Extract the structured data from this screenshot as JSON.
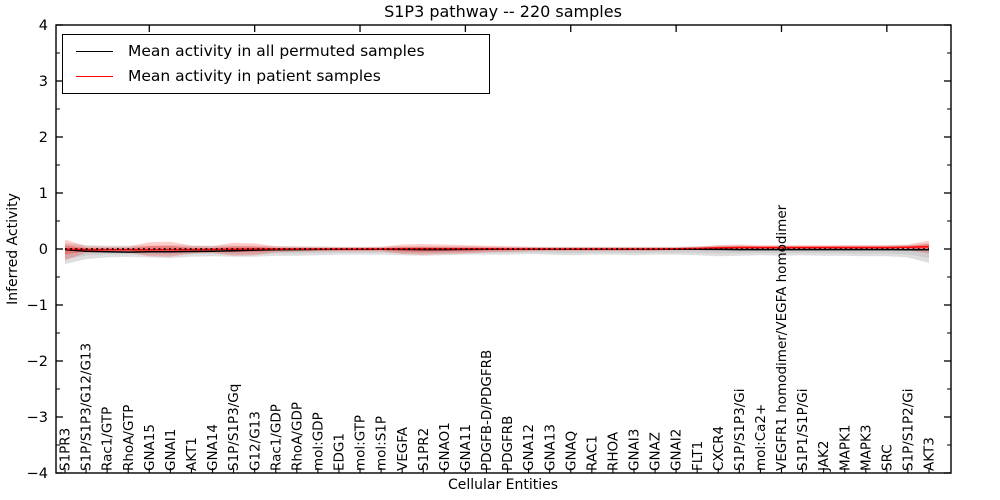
{
  "figure": {
    "title": "S1P3 pathway -- 220 samples",
    "xlabel": "Cellular Entities",
    "ylabel": "Inferred Activity"
  },
  "legend": {
    "position": "upper left",
    "items": [
      {
        "label": "Mean activity in all permuted samples",
        "color": "#000000"
      },
      {
        "label": "Mean activity in patient samples",
        "color": "#ff0000"
      }
    ]
  },
  "chart_data": {
    "type": "line",
    "title": "S1P3 pathway -- 220 samples",
    "xlabel": "Cellular Entities",
    "ylabel": "Inferred Activity",
    "ylim": [
      -4,
      4
    ],
    "yticks": [
      4,
      3,
      2,
      1,
      0,
      -1,
      -2,
      -3,
      -4
    ],
    "y_minor_tick_step": 0.5,
    "xticks_top": [
      5,
      10,
      15,
      20,
      25,
      30,
      35,
      40
    ],
    "grid": false,
    "legend_position": "upper left",
    "categories": [
      "S1PR3",
      "S1P/S1P3/G12/G13",
      "Rac1/GTP",
      "RhoA/GTP",
      "GNA15",
      "GNAI1",
      "AKT1",
      "GNA14",
      "S1P/S1P3/Gq",
      "G12/G13",
      "Rac1/GDP",
      "RhoA/GDP",
      "mol:GDP",
      "EDG1",
      "mol:GTP",
      "mol:S1P",
      "VEGFA",
      "S1PR2",
      "GNAO1",
      "GNA11",
      "PDGFB-D/PDGFRB",
      "PDGFRB",
      "GNA12",
      "GNA13",
      "GNAQ",
      "RAC1",
      "RHOA",
      "GNAI3",
      "GNAZ",
      "GNAI2",
      "FLT1",
      "CXCR4",
      "S1P/S1P3/Gi",
      "mol:Ca2+",
      "VEGFR1 homodimer/VEGFA homodimer",
      "S1P1/S1P/Gi",
      "JAK2",
      "MAPK1",
      "MAPK3",
      "SRC",
      "S1P/S1P2/Gi",
      "AKT3"
    ],
    "series": [
      {
        "name": "Mean activity in all permuted samples",
        "color": "#000000",
        "style": "solid",
        "values": [
          -0.01,
          -0.04,
          -0.05,
          -0.055,
          -0.05,
          -0.05,
          -0.045,
          -0.04,
          -0.03,
          -0.02,
          -0.015,
          -0.01,
          -0.008,
          -0.005,
          -0.005,
          -0.005,
          -0.008,
          -0.01,
          -0.01,
          -0.008,
          -0.005,
          -0.005,
          -0.005,
          -0.005,
          -0.005,
          -0.005,
          -0.005,
          -0.005,
          -0.005,
          -0.005,
          -0.005,
          -0.008,
          -0.01,
          -0.01,
          -0.01,
          -0.01,
          -0.01,
          -0.01,
          -0.01,
          -0.01,
          -0.012,
          -0.015
        ]
      },
      {
        "name": "Mean activity in patient samples",
        "color": "#ff0000",
        "style": "solid",
        "values": [
          0,
          -0.01,
          -0.015,
          -0.015,
          -0.012,
          -0.01,
          -0.01,
          -0.008,
          -0.005,
          0,
          0,
          0,
          0,
          0,
          0,
          0,
          0.005,
          0.005,
          0.005,
          0.005,
          0.003,
          0,
          0,
          0,
          0,
          0,
          0,
          0,
          0,
          0.005,
          0.01,
          0.02,
          0.025,
          0.025,
          0.025,
          0.025,
          0.025,
          0.025,
          0.025,
          0.025,
          0.03,
          0.04
        ]
      },
      {
        "name": "zero reference",
        "color": "#000000",
        "style": "dotted",
        "constant": 0
      }
    ],
    "bands": [
      {
        "name": "permuted samples spread",
        "color": "rgba(0,0,0,0.13)",
        "upper": [
          0.1,
          0.07,
          0.06,
          0.06,
          0.06,
          0.07,
          0.06,
          0.06,
          0.06,
          0.06,
          0.05,
          0.05,
          0.05,
          0.04,
          0.04,
          0.04,
          0.05,
          0.05,
          0.05,
          0.05,
          0.04,
          0.04,
          0.04,
          0.04,
          0.04,
          0.04,
          0.04,
          0.04,
          0.04,
          0.04,
          0.05,
          0.06,
          0.06,
          0.05,
          0.05,
          0.05,
          0.05,
          0.06,
          0.06,
          0.06,
          0.07,
          0.1
        ],
        "lower": [
          -0.27,
          -0.18,
          -0.15,
          -0.14,
          -0.15,
          -0.16,
          -0.14,
          -0.13,
          -0.14,
          -0.14,
          -0.12,
          -0.12,
          -0.11,
          -0.1,
          -0.1,
          -0.1,
          -0.11,
          -0.12,
          -0.11,
          -0.1,
          -0.1,
          -0.1,
          -0.09,
          -0.1,
          -0.11,
          -0.1,
          -0.1,
          -0.11,
          -0.1,
          -0.1,
          -0.11,
          -0.13,
          -0.12,
          -0.11,
          -0.12,
          -0.11,
          -0.12,
          -0.12,
          -0.13,
          -0.13,
          -0.15,
          -0.25
        ]
      },
      {
        "name": "permuted samples spread (core)",
        "color": "rgba(0,0,0,0.07)",
        "derive": {
          "band": 0,
          "scale": 0.5
        }
      },
      {
        "name": "patient samples spread",
        "color": "rgba(255,0,0,0.20)",
        "upper": [
          0.17,
          0.05,
          0.04,
          0.04,
          0.12,
          0.13,
          0.06,
          0.05,
          0.11,
          0.1,
          0.05,
          0.04,
          0.03,
          0.03,
          0.03,
          0.04,
          0.08,
          0.09,
          0.08,
          0.07,
          0.06,
          0.05,
          0.04,
          0.03,
          0.03,
          0.03,
          0.03,
          0.03,
          0.03,
          0.03,
          0.04,
          0.07,
          0.08,
          0.07,
          0.07,
          0.07,
          0.07,
          0.07,
          0.07,
          0.07,
          0.08,
          0.15
        ],
        "lower": [
          -0.2,
          -0.07,
          -0.06,
          -0.06,
          -0.13,
          -0.14,
          -0.08,
          -0.07,
          -0.12,
          -0.11,
          -0.06,
          -0.05,
          -0.04,
          -0.04,
          -0.04,
          -0.04,
          -0.09,
          -0.1,
          -0.09,
          -0.08,
          -0.06,
          -0.05,
          -0.04,
          -0.03,
          -0.03,
          -0.03,
          -0.03,
          -0.03,
          -0.03,
          -0.02,
          -0.02,
          -0.02,
          -0.01,
          -0.01,
          -0.01,
          -0.01,
          -0.01,
          -0.01,
          -0.01,
          -0.01,
          -0.02,
          -0.08
        ]
      },
      {
        "name": "patient samples spread (core)",
        "color": "rgba(255,0,0,0.28)",
        "derive": {
          "band": 2,
          "scale": 0.45
        }
      }
    ]
  }
}
